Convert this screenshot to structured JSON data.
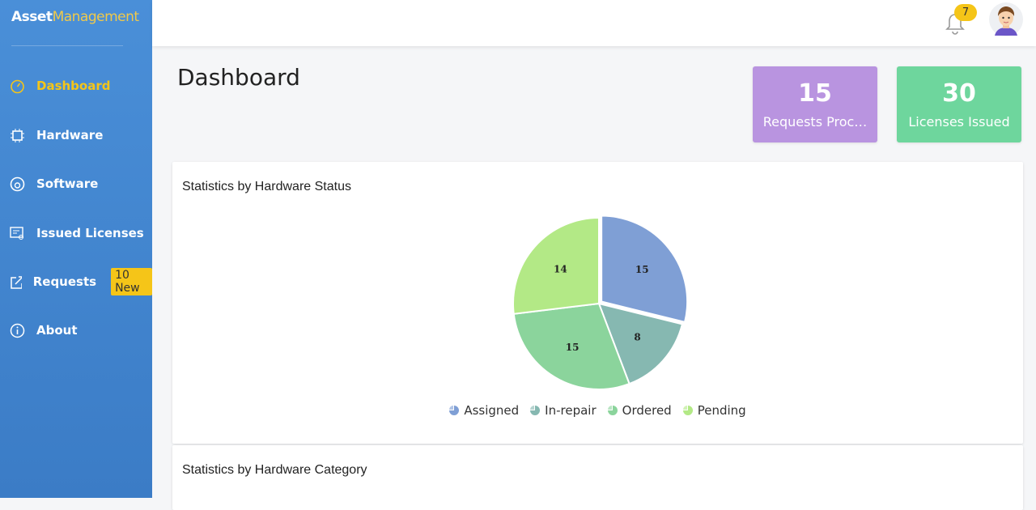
{
  "brand": {
    "bold": "Asset",
    "rest": "Management"
  },
  "nav": [
    {
      "label": "Dashboard"
    },
    {
      "label": "Hardware"
    },
    {
      "label": "Software"
    },
    {
      "label": "Issued Licenses"
    },
    {
      "label": "Requests",
      "badge": "10 New"
    },
    {
      "label": "About"
    }
  ],
  "header": {
    "notifications": 7
  },
  "page_title": "Dashboard",
  "cards": [
    {
      "value": 15,
      "label": "Requests Proc…"
    },
    {
      "value": 30,
      "label": "Licenses Issued"
    }
  ],
  "chart_data": {
    "type": "pie",
    "title": "Statistics by Hardware Status",
    "categories": [
      "Assigned",
      "In-repair",
      "Ordered",
      "Pending"
    ],
    "values": [
      15,
      8,
      15,
      14
    ],
    "colors": [
      "#7f9fd5",
      "#86b8b1",
      "#8bd49c",
      "#b3e986"
    ]
  },
  "panel2": {
    "title": "Statistics by Hardware Category"
  }
}
